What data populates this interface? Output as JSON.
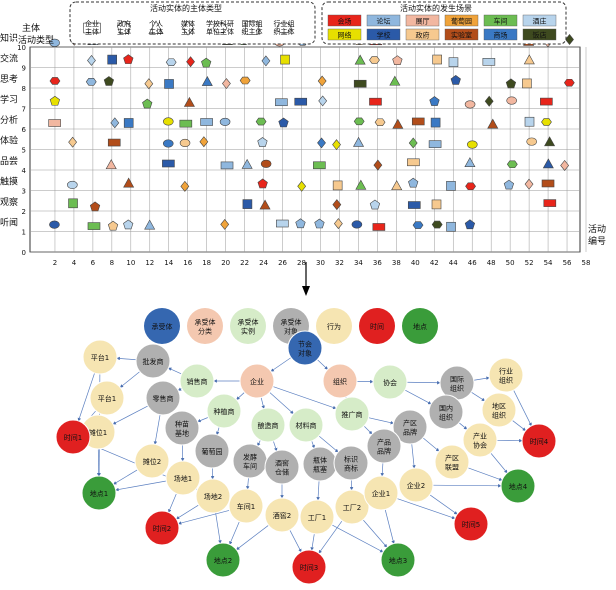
{
  "top_chart": {
    "y_axis_title": "主体\n活动类型",
    "x_axis_title": "活动\n编号",
    "y_ticks": [
      "0",
      "1",
      "2",
      "3",
      "4",
      "5",
      "6",
      "7",
      "8",
      "9",
      "10"
    ],
    "y_categories": [
      "听闻",
      "观察",
      "触摸",
      "品尝",
      "体验",
      "分析",
      "学习",
      "思考",
      "交流",
      "知识"
    ],
    "x_ticks": [
      "2",
      "4",
      "6",
      "8",
      "10",
      "12",
      "14",
      "16",
      "18",
      "20",
      "22",
      "24",
      "26",
      "28",
      "30",
      "32",
      "34",
      "36",
      "38",
      "40",
      "42",
      "44",
      "46",
      "48",
      "50",
      "52",
      "54",
      "56",
      "58"
    ],
    "subject_legend": {
      "title": "活动实体的主体类型",
      "items": [
        "企业\n主体",
        "政府\n主体",
        "个人\n主体",
        "媒体\n主体",
        "学校科研\n单位主体",
        "国际组\n织主体",
        "行业组\n织主体"
      ]
    },
    "venue_legend": {
      "title": "活动实体的发生场景",
      "items": [
        {
          "label": "会场",
          "color": "#e8251b"
        },
        {
          "label": "论坛",
          "color": "#8fb7de"
        },
        {
          "label": "展厅",
          "color": "#f2b7a0"
        },
        {
          "label": "葡萄园",
          "color": "#f0a33a"
        },
        {
          "label": "车间",
          "color": "#6cbd52"
        },
        {
          "label": "酒庄",
          "color": "#b8d4ec"
        },
        {
          "label": "网络",
          "color": "#e7e000"
        },
        {
          "label": "学校",
          "color": "#2b5aa8"
        },
        {
          "label": "政府",
          "color": "#f6c98f"
        },
        {
          "label": "实验室",
          "color": "#b24d1a"
        },
        {
          "label": "商场",
          "color": "#3a79c4"
        },
        {
          "label": "饭店",
          "color": "#3e4a1f"
        }
      ]
    }
  },
  "network": {
    "legend": [
      {
        "label": "承受体",
        "color": "#3567b0",
        "text": "#ffffff"
      },
      {
        "label": "承受体\n分类",
        "color": "#f4c8b0",
        "text": "#222222"
      },
      {
        "label": "承受体\n实例",
        "color": "#d6ecc8",
        "text": "#222222"
      },
      {
        "label": "承受体\n对象",
        "color": "#b0b0b0",
        "text": "#222222"
      },
      {
        "label": "行为",
        "color": "#f6e5b2",
        "text": "#222222"
      },
      {
        "label": "时间",
        "color": "#e02020",
        "text": "#ffffff"
      },
      {
        "label": "地点",
        "color": "#3a9c3a",
        "text": "#ffffff"
      }
    ],
    "nodes": [
      {
        "id": "root",
        "label": "节会\n对象",
        "color": "#3567b0",
        "text": "#fff"
      },
      {
        "id": "qy",
        "label": "企业",
        "color": "#f4c8b0"
      },
      {
        "id": "zz",
        "label": "组织",
        "color": "#f4c8b0"
      },
      {
        "id": "xss",
        "label": "销售商",
        "color": "#d6ecc8"
      },
      {
        "id": "zzs",
        "label": "种植商",
        "color": "#d6ecc8"
      },
      {
        "id": "nzs",
        "label": "酿造商",
        "color": "#d6ecc8"
      },
      {
        "id": "cls",
        "label": "材料商",
        "color": "#d6ecc8"
      },
      {
        "id": "tgs",
        "label": "推广商",
        "color": "#d6ecc8"
      },
      {
        "id": "xh",
        "label": "协会",
        "color": "#d6ecc8"
      },
      {
        "id": "gjzz",
        "label": "国际\n组织",
        "color": "#b0b0b0"
      },
      {
        "id": "gnzz",
        "label": "国内\n组织",
        "color": "#b0b0b0"
      },
      {
        "id": "pfs",
        "label": "批发商",
        "color": "#b0b0b0"
      },
      {
        "id": "lss",
        "label": "零售商",
        "color": "#b0b0b0"
      },
      {
        "id": "zmjd",
        "label": "种苗\n基地",
        "color": "#b0b0b0"
      },
      {
        "id": "pty",
        "label": "葡萄园",
        "color": "#b0b0b0"
      },
      {
        "id": "fjcj",
        "label": "发酵\n车间",
        "color": "#b0b0b0"
      },
      {
        "id": "jjcc",
        "label": "酒窖\n仓储",
        "color": "#b0b0b0"
      },
      {
        "id": "pjpc",
        "label": "瓶体\n瓶塞",
        "color": "#b0b0b0"
      },
      {
        "id": "bssb",
        "label": "标识\n商标",
        "color": "#b0b0b0"
      },
      {
        "id": "cqpp",
        "label": "产区\n品牌",
        "color": "#b0b0b0"
      },
      {
        "id": "cppp",
        "label": "产品\n品牌",
        "color": "#b0b0b0"
      },
      {
        "id": "pt1",
        "label": "平台1",
        "color": "#f6e5b2"
      },
      {
        "id": "pt2",
        "label": "平台1",
        "color": "#f6e5b2"
      },
      {
        "id": "tw1",
        "label": "摊位1",
        "color": "#f6e5b2"
      },
      {
        "id": "tw2",
        "label": "摊位2",
        "color": "#f6e5b2"
      },
      {
        "id": "cd1",
        "label": "场地1",
        "color": "#f6e5b2"
      },
      {
        "id": "cd2",
        "label": "场地2",
        "color": "#f6e5b2"
      },
      {
        "id": "cj1",
        "label": "车间1",
        "color": "#f6e5b2"
      },
      {
        "id": "jj2",
        "label": "酒窖2",
        "color": "#f6e5b2"
      },
      {
        "id": "gc1",
        "label": "工厂1",
        "color": "#f6e5b2"
      },
      {
        "id": "gc2",
        "label": "工厂2",
        "color": "#f6e5b2"
      },
      {
        "id": "qy1",
        "label": "企业1",
        "color": "#f6e5b2"
      },
      {
        "id": "qy2",
        "label": "企业2",
        "color": "#f6e5b2"
      },
      {
        "id": "cqlm",
        "label": "产区\n联盟",
        "color": "#f6e5b2"
      },
      {
        "id": "cyxh",
        "label": "产业\n协会",
        "color": "#f6e5b2"
      },
      {
        "id": "dqzz",
        "label": "地区\n组织",
        "color": "#f6e5b2"
      },
      {
        "id": "hyzz",
        "label": "行业\n组织",
        "color": "#f6e5b2"
      },
      {
        "id": "sj1",
        "label": "时间1",
        "color": "#e02020",
        "text": "#fff"
      },
      {
        "id": "sj2",
        "label": "时间2",
        "color": "#e02020",
        "text": "#fff"
      },
      {
        "id": "sj3",
        "label": "时间3",
        "color": "#e02020",
        "text": "#fff"
      },
      {
        "id": "sj4",
        "label": "时间4",
        "color": "#e02020",
        "text": "#fff"
      },
      {
        "id": "sj5",
        "label": "时间5",
        "color": "#e02020",
        "text": "#fff"
      },
      {
        "id": "dd1",
        "label": "地点1",
        "color": "#3a9c3a",
        "text": "#fff"
      },
      {
        "id": "dd2",
        "label": "地点2",
        "color": "#3a9c3a",
        "text": "#fff"
      },
      {
        "id": "dd3",
        "label": "地点3",
        "color": "#3a9c3a",
        "text": "#fff"
      },
      {
        "id": "dd4",
        "label": "地点4",
        "color": "#3a9c3a",
        "text": "#fff"
      }
    ],
    "edges": [
      [
        "root",
        "qy"
      ],
      [
        "root",
        "zz"
      ],
      [
        "qy",
        "xss"
      ],
      [
        "qy",
        "zzs"
      ],
      [
        "qy",
        "nzs"
      ],
      [
        "qy",
        "cls"
      ],
      [
        "qy",
        "tgs"
      ],
      [
        "zz",
        "xh"
      ],
      [
        "zz",
        "tgs"
      ],
      [
        "xh",
        "gjzz"
      ],
      [
        "xh",
        "gnzz"
      ],
      [
        "xss",
        "pfs"
      ],
      [
        "xss",
        "lss"
      ],
      [
        "zzs",
        "zmjd"
      ],
      [
        "zzs",
        "pty"
      ],
      [
        "nzs",
        "fjcj"
      ],
      [
        "nzs",
        "jjcc"
      ],
      [
        "cls",
        "pjpc"
      ],
      [
        "cls",
        "bssb"
      ],
      [
        "tgs",
        "cqpp"
      ],
      [
        "tgs",
        "cppp"
      ],
      [
        "pfs",
        "pt1"
      ],
      [
        "pfs",
        "pt2"
      ],
      [
        "lss",
        "tw1"
      ],
      [
        "lss",
        "tw2"
      ],
      [
        "zmjd",
        "cd1"
      ],
      [
        "pty",
        "cd2"
      ],
      [
        "fjcj",
        "cj1"
      ],
      [
        "jjcc",
        "jj2"
      ],
      [
        "pjpc",
        "gc1"
      ],
      [
        "bssb",
        "gc2"
      ],
      [
        "cppp",
        "qy1"
      ],
      [
        "cqpp",
        "qy2"
      ],
      [
        "cqpp",
        "cqlm"
      ],
      [
        "gnzz",
        "cyxh"
      ],
      [
        "gjzz",
        "hyzz"
      ],
      [
        "gjzz",
        "dqzz"
      ],
      [
        "pt1",
        "sj1"
      ],
      [
        "pt2",
        "sj1"
      ],
      [
        "tw1",
        "sj1"
      ],
      [
        "tw1",
        "dd1"
      ],
      [
        "tw2",
        "dd1"
      ],
      [
        "cd1",
        "dd1"
      ],
      [
        "cd1",
        "sj2"
      ],
      [
        "cd2",
        "sj2"
      ],
      [
        "cd2",
        "dd2"
      ],
      [
        "cj1",
        "sj2"
      ],
      [
        "cj1",
        "dd2"
      ],
      [
        "jj2",
        "sj3"
      ],
      [
        "jj2",
        "dd2"
      ],
      [
        "gc1",
        "sj3"
      ],
      [
        "gc1",
        "dd3"
      ],
      [
        "gc2",
        "sj3"
      ],
      [
        "gc2",
        "dd3"
      ],
      [
        "qy1",
        "dd3"
      ],
      [
        "qy1",
        "sj5"
      ],
      [
        "qy2",
        "sj5"
      ],
      [
        "qy2",
        "dd4"
      ],
      [
        "cqlm",
        "dd4"
      ],
      [
        "cyxh",
        "dd4"
      ],
      [
        "cyxh",
        "sj4"
      ],
      [
        "dqzz",
        "sj4"
      ],
      [
        "hyzz",
        "sj4"
      ],
      [
        "pt1",
        "dd1"
      ],
      [
        "cd2",
        "sj1"
      ]
    ]
  }
}
